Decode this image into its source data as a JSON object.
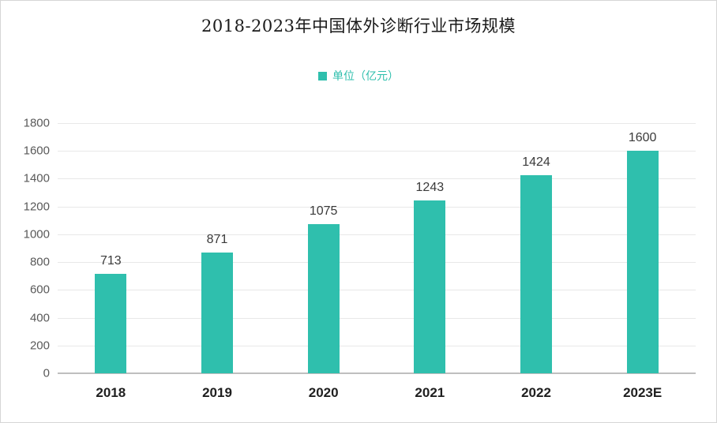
{
  "title": "2018-2023年中国体外诊断行业市场规模",
  "legend": {
    "label": "单位（亿元）"
  },
  "colors": {
    "bar": "#2FBFAD",
    "legend_text": "#2FBFAD",
    "gridline": "#e8e8e8",
    "axis_line": "#bfbfbf"
  },
  "chart_data": {
    "type": "bar",
    "title": "2018-2023年中国体外诊断行业市场规模",
    "legend": "单位（亿元）",
    "legend_position": "top",
    "categories": [
      "2018",
      "2019",
      "2020",
      "2021",
      "2022",
      "2023E"
    ],
    "values": [
      713,
      871,
      1075,
      1243,
      1424,
      1600
    ],
    "xlabel": "",
    "ylabel": "",
    "ylim": [
      0,
      1800
    ],
    "ytick_step": 200,
    "grid": true,
    "bar_color": "#2FBFAD",
    "value_labels": [
      713,
      871,
      1075,
      1243,
      1424,
      1600
    ]
  }
}
